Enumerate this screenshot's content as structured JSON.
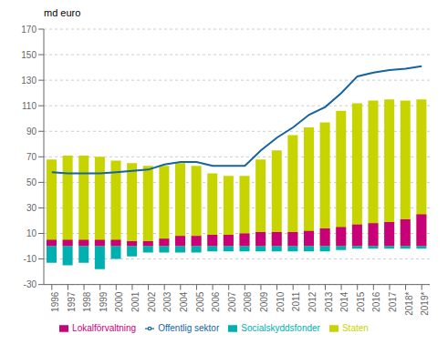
{
  "chart_data": {
    "type": "bar",
    "y_label": "md euro",
    "categories": [
      "1996",
      "1997",
      "1998",
      "1999",
      "2000",
      "2001",
      "2002",
      "2003",
      "2004",
      "2005",
      "2006",
      "2007",
      "2008",
      "2009",
      "2010",
      "2011",
      "2012",
      "2013",
      "2014",
      "2015",
      "2016",
      "2017",
      "2018*",
      "2019*"
    ],
    "series": [
      {
        "name": "Staten",
        "type": "bar",
        "color": "#c8d400",
        "values": [
          68,
          71,
          71,
          70,
          67,
          65,
          63,
          63,
          65,
          63,
          57,
          55,
          55,
          68,
          75,
          87,
          93,
          97,
          106,
          112,
          114,
          115,
          114,
          115
        ]
      },
      {
        "name": "Lokalförvaltning",
        "type": "bar",
        "color": "#c8007a",
        "values": [
          5,
          5,
          5,
          5,
          5,
          4,
          4,
          6,
          8,
          8,
          9,
          9,
          10,
          11,
          11,
          11,
          12,
          14,
          15,
          17,
          18,
          19,
          21,
          25
        ]
      },
      {
        "name": "Socialskyddsfonder",
        "type": "bar",
        "color": "#00b0b0",
        "values": [
          -13,
          -15,
          -13,
          -18,
          -10,
          -8,
          -5,
          -5,
          -5,
          -5,
          -4,
          -4,
          -4,
          -4,
          -4,
          -4,
          -4,
          -4,
          -3,
          -2,
          -2,
          -2,
          -2,
          -2
        ]
      },
      {
        "name": "Offentlig sektor",
        "type": "line",
        "color": "#1464a0",
        "values": [
          58,
          57,
          57,
          57,
          58,
          59,
          60,
          64,
          66,
          66,
          63,
          63,
          63,
          75,
          85,
          93,
          103,
          109,
          120,
          133,
          136,
          138,
          139,
          141
        ]
      }
    ],
    "ylim": [
      -30,
      170
    ],
    "yticks": [
      -30,
      -10,
      10,
      30,
      50,
      70,
      90,
      110,
      130,
      150,
      170
    ],
    "grid": true,
    "legend": "bottom"
  }
}
